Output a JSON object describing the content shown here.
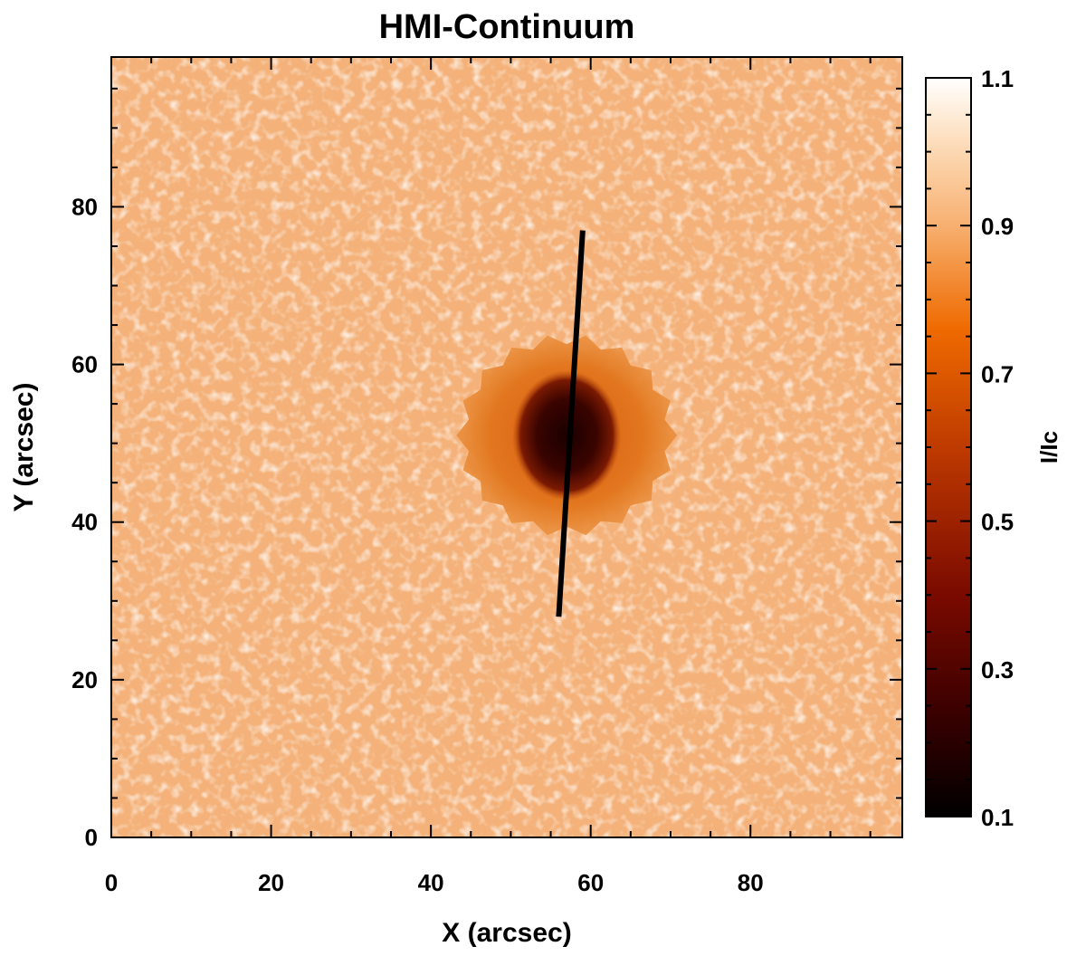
{
  "chart_data": {
    "type": "heatmap",
    "title": "HMI-Continuum",
    "xlabel": "X (arcsec)",
    "ylabel": "Y (arcsec)",
    "xlim": [
      0,
      99
    ],
    "ylim": [
      0,
      99
    ],
    "x_ticks": [
      0,
      20,
      40,
      60,
      80
    ],
    "y_ticks": [
      0,
      20,
      40,
      60,
      80
    ],
    "x_tick_labels": [
      "0",
      "20",
      "40",
      "60",
      "80"
    ],
    "y_tick_labels": [
      "0",
      "20",
      "40",
      "60",
      "80"
    ],
    "colorbar": {
      "label": "I/Ic",
      "range": [
        0.1,
        1.1
      ],
      "ticks": [
        0.1,
        0.3,
        0.5,
        0.7,
        0.9,
        1.1
      ],
      "tick_labels": [
        "0.1",
        "0.3",
        "0.5",
        "0.7",
        "0.9",
        "1.1"
      ],
      "colors": [
        "#000000",
        "#3a0000",
        "#7a0a00",
        "#b83500",
        "#ef6a00",
        "#f7b070",
        "#fde0c0",
        "#ffffff"
      ]
    },
    "features": {
      "sunspot_umbra_center": [
        57,
        51
      ],
      "sunspot_penumbra_center": [
        57,
        51
      ],
      "slit": {
        "start": [
          56,
          28
        ],
        "end": [
          59,
          77
        ],
        "color": "#000000"
      }
    },
    "grid": false
  }
}
